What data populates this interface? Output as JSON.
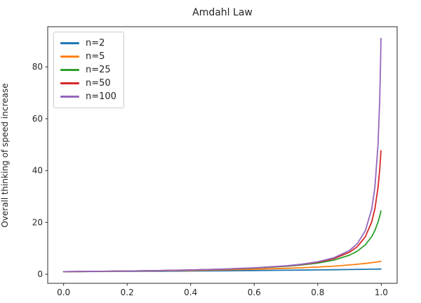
{
  "figure": {
    "background": "#ffffff",
    "text_color": "#262626",
    "frame_color": "#2b2b2b"
  },
  "chart_data": {
    "type": "line",
    "title": "Amdahl Law",
    "xlabel": "",
    "ylabel": "Overall thinking of speed increase",
    "grid": false,
    "legend_position": "upper-left",
    "xlim": [
      -0.05,
      1.05
    ],
    "ylim": [
      -3.5,
      95.5
    ],
    "xticks": [
      0.0,
      0.2,
      0.4,
      0.6,
      0.8,
      1.0
    ],
    "xtick_labels": [
      "0.0",
      "0.2",
      "0.4",
      "0.6",
      "0.8",
      "1.0"
    ],
    "yticks": [
      0,
      20,
      40,
      60,
      80
    ],
    "ytick_labels": [
      "0",
      "20",
      "40",
      "60",
      "80"
    ],
    "x": [
      0,
      0.1,
      0.2,
      0.3,
      0.4,
      0.5,
      0.6,
      0.7,
      0.75,
      0.8,
      0.85,
      0.9,
      0.925,
      0.95,
      0.97,
      0.98,
      0.99,
      0.995,
      0.997,
      0.998,
      0.999
    ],
    "series": [
      {
        "name": "n=2",
        "color": "#1f77b4",
        "values": [
          1.0,
          1.053,
          1.111,
          1.176,
          1.25,
          1.333,
          1.429,
          1.538,
          1.6,
          1.667,
          1.739,
          1.818,
          1.86,
          1.905,
          1.942,
          1.961,
          1.98,
          1.99,
          1.994,
          1.996,
          1.998
        ]
      },
      {
        "name": "n=5",
        "color": "#ff7f0e",
        "values": [
          1.0,
          1.087,
          1.19,
          1.316,
          1.471,
          1.667,
          1.923,
          2.273,
          2.5,
          2.778,
          3.125,
          3.571,
          3.846,
          4.167,
          4.464,
          4.63,
          4.808,
          4.902,
          4.941,
          4.96,
          4.98
        ]
      },
      {
        "name": "n=25",
        "color": "#2ca02c",
        "values": [
          1.0,
          1.106,
          1.238,
          1.404,
          1.623,
          1.923,
          2.358,
          3.049,
          3.571,
          4.31,
          5.435,
          7.353,
          8.929,
          11.364,
          14.535,
          16.892,
          20.161,
          22.321,
          23.321,
          23.855,
          24.414
        ]
      },
      {
        "name": "n=50",
        "color": "#d62728",
        "values": [
          1.0,
          1.109,
          1.244,
          1.416,
          1.645,
          1.961,
          2.427,
          3.185,
          3.774,
          4.63,
          5.988,
          8.475,
          10.695,
          14.493,
          20.243,
          25.253,
          33.557,
          40.161,
          43.592,
          45.537,
          47.664
        ]
      },
      {
        "name": "n=100",
        "color": "#9467bd",
        "values": [
          1.0,
          1.11,
          1.247,
          1.422,
          1.656,
          1.98,
          2.463,
          3.257,
          3.883,
          4.808,
          6.309,
          9.174,
          11.869,
          16.807,
          25.189,
          33.557,
          50.251,
          66.89,
          77.101,
          83.472,
          90.992
        ]
      }
    ]
  }
}
